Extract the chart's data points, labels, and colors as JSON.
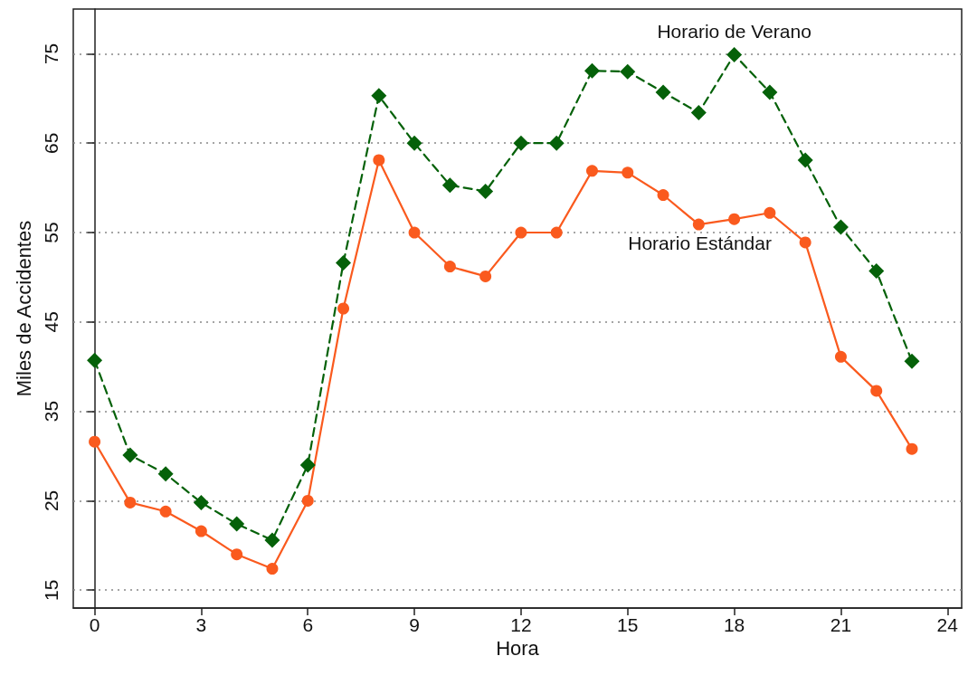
{
  "chart_data": {
    "type": "line",
    "xlabel": "Hora",
    "ylabel": "Miles de Accidentes",
    "x": [
      0,
      1,
      2,
      3,
      4,
      5,
      6,
      7,
      8,
      9,
      10,
      11,
      12,
      13,
      14,
      15,
      16,
      17,
      18,
      19,
      20,
      21,
      22,
      23
    ],
    "series": [
      {
        "name": "Horario de Verano",
        "color": "#056109",
        "marker": "diamond",
        "line_style": "dashed",
        "values": [
          40.7,
          30.1,
          28.0,
          24.8,
          22.4,
          20.6,
          29.0,
          51.6,
          70.3,
          65.0,
          60.3,
          59.6,
          65.0,
          65.0,
          73.1,
          73.0,
          70.7,
          68.4,
          74.9,
          70.7,
          63.1,
          55.6,
          50.7,
          40.6
        ]
      },
      {
        "name": "Horario Estándar",
        "color": "#fa5a1e",
        "marker": "circle",
        "line_style": "solid",
        "values": [
          31.6,
          24.8,
          23.8,
          21.6,
          19.0,
          17.4,
          25.0,
          46.5,
          63.1,
          55.0,
          51.2,
          50.1,
          55.0,
          55.0,
          61.9,
          61.7,
          59.2,
          55.9,
          56.5,
          57.2,
          53.9,
          41.1,
          37.3,
          30.8
        ]
      }
    ],
    "xlim": [
      -0.6,
      24.4
    ],
    "xticks": [
      0,
      3,
      6,
      9,
      12,
      15,
      18,
      21,
      24
    ],
    "ylim": [
      13,
      80
    ],
    "yticks": [
      15,
      25,
      35,
      45,
      55,
      65,
      75
    ],
    "grid": "y",
    "legend": false
  }
}
